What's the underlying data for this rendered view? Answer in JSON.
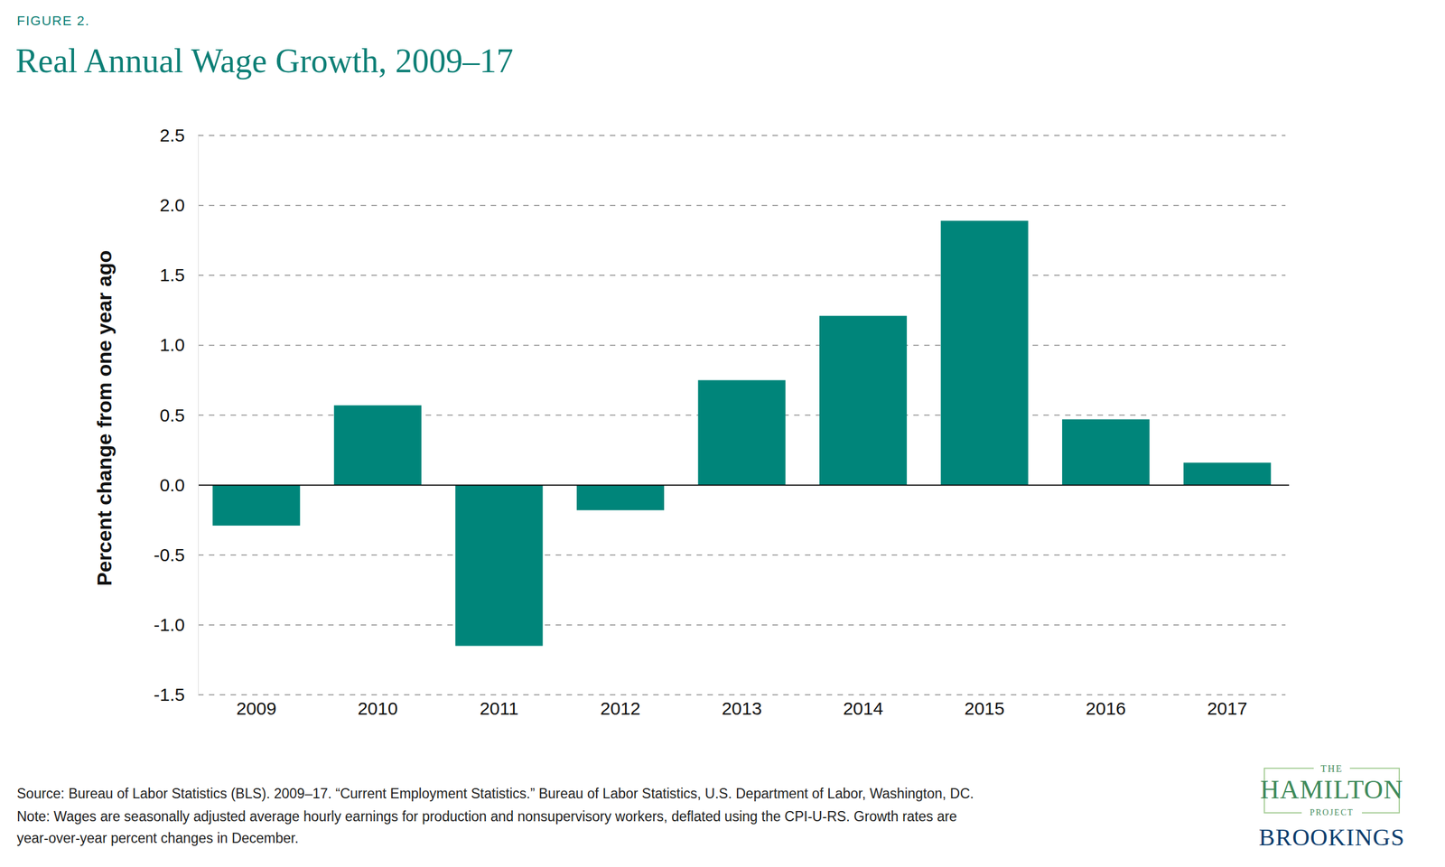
{
  "chart_data": {
    "type": "bar",
    "figure_label": "FIGURE 2.",
    "title": "Real Annual Wage Growth, 2009–17",
    "y_label": "Percent change from one year ago",
    "categories": [
      "2009",
      "2010",
      "2011",
      "2012",
      "2013",
      "2014",
      "2015",
      "2016",
      "2017"
    ],
    "values": [
      -0.29,
      0.57,
      -1.15,
      -0.18,
      0.75,
      1.21,
      1.89,
      0.47,
      0.16
    ],
    "color": "#00857a",
    "ylim": [
      -1.5,
      2.5
    ],
    "yticks": [
      -1.5,
      {
        "value": -1,
        "label": "-1.0"
      },
      -0.5,
      {
        "value": 0,
        "label": "0.0"
      },
      0.5,
      {
        "value": 1,
        "label": "1.0"
      },
      1.5,
      {
        "value": 2,
        "label": "2.0"
      },
      2.5
    ],
    "grid": true,
    "source": "Source: Bureau of Labor Statistics (BLS). 2009–17. “Current Employment Statistics.” Bureau of Labor Statistics, U.S. Department of Labor, Washington, DC.",
    "note": [
      "Note: Wages are seasonally adjusted average hourly earnings for production and nonsupervisory workers, deflated using the CPI-U-RS. Growth rates are",
      "year-over-year percent changes in December."
    ],
    "logo": [
      "THE",
      "HAMILTON",
      "PROJECT",
      "BROOKINGS"
    ]
  }
}
